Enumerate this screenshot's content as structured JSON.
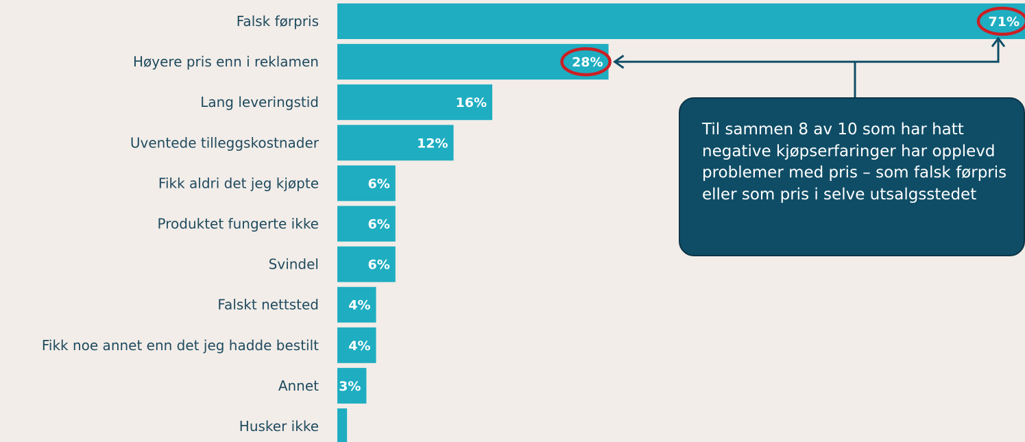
{
  "chart_data": {
    "type": "bar",
    "orientation": "horizontal",
    "categories": [
      "Falsk førpris",
      "Høyere pris enn i reklamen",
      "Lang leveringstid",
      "Uventede tilleggskostnader",
      "Fikk aldri det jeg kjøpte",
      "Produktet fungerte ikke",
      "Svindel",
      "Falskt nettsted",
      "Fikk noe annet enn det jeg hadde bestilt",
      "Annet",
      "Husker ikke"
    ],
    "values": [
      71,
      28,
      16,
      12,
      6,
      6,
      6,
      4,
      4,
      3,
      1
    ],
    "value_labels": [
      "71%",
      "28%",
      "16%",
      "12%",
      "6%",
      "6%",
      "6%",
      "4%",
      "4%",
      "3%",
      ""
    ],
    "highlighted": [
      "Falsk førpris",
      "Høyere pris enn i reklamen"
    ],
    "bar_color": "#1fadc1",
    "highlight_ring_color": "#cc1f24",
    "xlim": [
      0,
      71
    ],
    "title": "",
    "xlabel": "",
    "ylabel": ""
  },
  "callout": {
    "text": "Til sammen 8 av 10 som har hatt negative kjøpserfaringer har opplevd problemer med pris – som falsk førpris eller som pris i selve utsalgsstedet",
    "background": "#0f4d66",
    "arrow_color": "#0f4d66"
  }
}
